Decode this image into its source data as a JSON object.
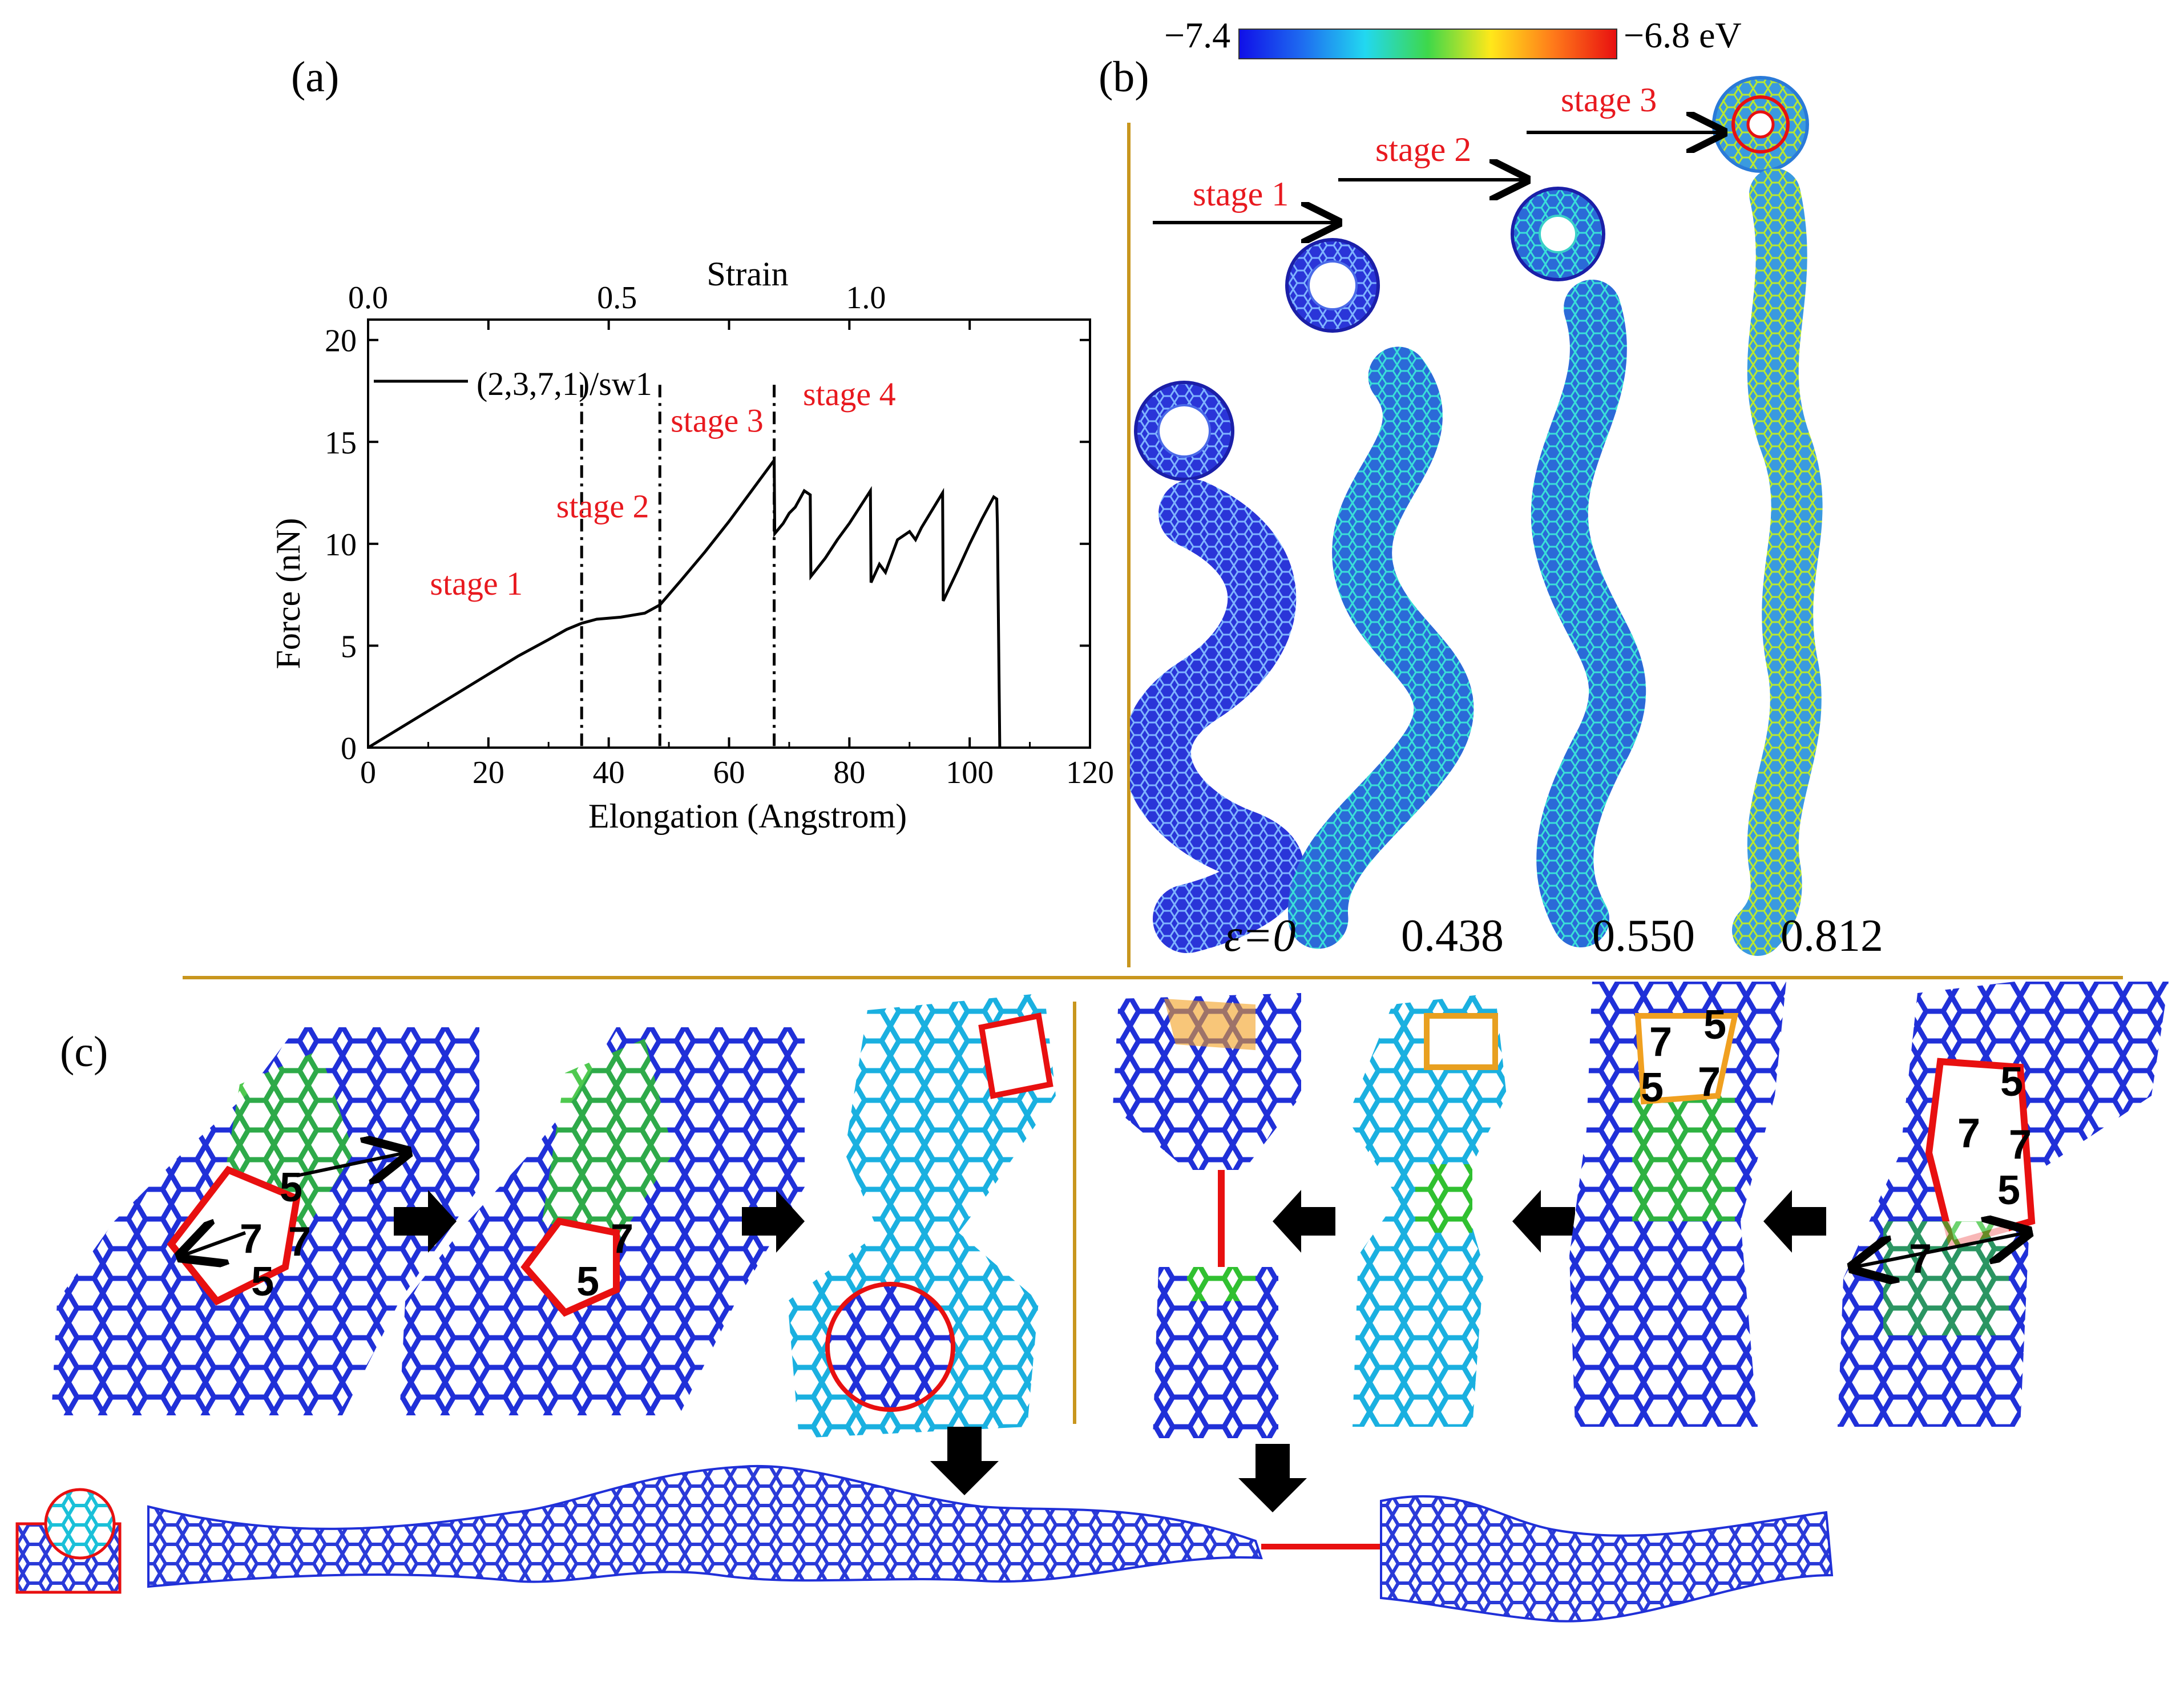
{
  "panels": {
    "a": "(a)",
    "b": "(b)",
    "c": "(c)"
  },
  "colorbar": {
    "min_label": "−7.4",
    "max_label": "−6.8 eV",
    "colors": [
      "#1010e8",
      "#1e6cf0",
      "#22d8f0",
      "#3ed84a",
      "#ffe81a",
      "#ff7a1a",
      "#e81010"
    ]
  },
  "chart_data": {
    "type": "line",
    "xlabel": "Elongation (Angstrom)",
    "ylabel": "Force (nN)",
    "top_axis_label": "Strain",
    "xlim": [
      0,
      120
    ],
    "ylim": [
      0,
      21
    ],
    "top_xlim": [
      0.0,
      1.45
    ],
    "x_ticks": [
      "0",
      "20",
      "40",
      "60",
      "80",
      "100",
      "120"
    ],
    "y_ticks": [
      "0",
      "5",
      "10",
      "15",
      "20"
    ],
    "top_ticks": [
      "0.0",
      "0.5",
      "1.0"
    ],
    "top_tick_values": [
      0.0,
      0.5,
      1.0
    ],
    "legend": "(2,3,7,1)/sw1",
    "stage_lines_x": [
      35.5,
      48.5,
      67.5
    ],
    "stage_labels": [
      {
        "text": "stage 1",
        "x": 18,
        "y": 7.5
      },
      {
        "text": "stage 2",
        "x": 39,
        "y": 11.3
      },
      {
        "text": "stage 3",
        "x": 58,
        "y": 15.5
      },
      {
        "text": "stage 4",
        "x": 80,
        "y": 16.8
      }
    ],
    "series": [
      {
        "x": [
          0,
          5,
          10,
          15,
          20,
          25,
          30,
          33,
          35.5,
          38,
          42,
          46,
          48.5,
          52,
          56,
          60,
          64,
          67.5,
          67.6,
          69,
          70,
          71,
          72.5,
          73.5,
          73.6,
          76,
          78,
          80,
          83.5,
          83.6,
          85,
          86,
          87,
          88,
          90,
          91,
          92,
          95.5,
          95.6,
          98,
          100,
          102,
          104,
          104.5,
          104.6,
          105
        ],
        "y": [
          0,
          0.9,
          1.8,
          2.7,
          3.6,
          4.5,
          5.3,
          5.8,
          6.1,
          6.3,
          6.4,
          6.6,
          7.0,
          8.2,
          9.6,
          11.1,
          12.7,
          14.1,
          10.5,
          11.0,
          11.5,
          11.8,
          12.6,
          12.4,
          8.4,
          9.3,
          10.2,
          11.0,
          12.6,
          8.1,
          9.0,
          8.6,
          9.4,
          10.2,
          10.6,
          10.2,
          10.8,
          12.5,
          7.2,
          8.7,
          10.0,
          11.2,
          12.3,
          12.2,
          11.0,
          0
        ]
      }
    ]
  },
  "panel_b": {
    "stages": [
      "stage 1",
      "stage 2",
      "stage 3"
    ],
    "strain_labels": [
      "ε=0",
      "0.438",
      "0.550",
      "0.812"
    ]
  },
  "panel_c": {
    "defect_labels_left_1": [
      "5",
      "7",
      "7",
      "5"
    ],
    "defect_labels_left_2": [
      "7",
      "5"
    ],
    "defect_labels_right_2": [
      "7",
      "5",
      "5",
      "7"
    ],
    "defect_labels_right_1": [
      "5",
      "7",
      "7",
      "5",
      "7"
    ]
  }
}
